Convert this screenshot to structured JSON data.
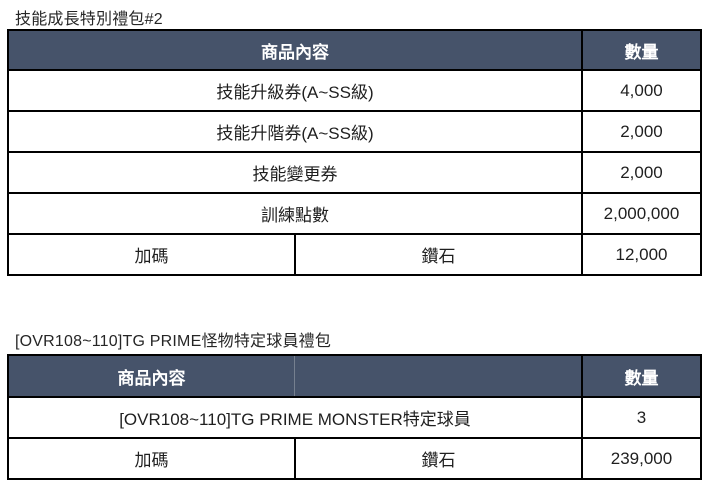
{
  "colors": {
    "header_bg": "#46536A",
    "header_text": "#FFFFFF",
    "body_text": "#1F1F1F",
    "border": "#000000",
    "header_divider": "#76808F",
    "page_bg": "#FFFFFF"
  },
  "tables": [
    {
      "title": "技能成長特別禮包#2",
      "header": {
        "content_label": "商品內容",
        "qty_label": "數量",
        "content_label_span": "full"
      },
      "rows": [
        {
          "cells": [
            {
              "text": "技能升級券(A~SS級)",
              "span": "full"
            }
          ],
          "qty": "4,000"
        },
        {
          "cells": [
            {
              "text": "技能升階券(A~SS級)",
              "span": "full"
            }
          ],
          "qty": "2,000"
        },
        {
          "cells": [
            {
              "text": "技能變更券",
              "span": "full"
            }
          ],
          "qty": "2,000"
        },
        {
          "cells": [
            {
              "text": "訓練點數",
              "span": "full"
            }
          ],
          "qty": "2,000,000"
        },
        {
          "cells": [
            {
              "text": "加碼",
              "span": "left"
            },
            {
              "text": "鑽石",
              "span": "right"
            }
          ],
          "qty": "12,000"
        }
      ]
    },
    {
      "title": "[OVR108~110]TG PRIME怪物特定球員禮包",
      "header": {
        "content_label": "商品內容",
        "qty_label": "數量",
        "content_label_span": "left"
      },
      "rows": [
        {
          "cells": [
            {
              "text": "[OVR108~110]TG PRIME MONSTER特定球員",
              "span": "full"
            }
          ],
          "qty": "3"
        },
        {
          "cells": [
            {
              "text": "加碼",
              "span": "left"
            },
            {
              "text": "鑽石",
              "span": "right"
            }
          ],
          "qty": "239,000"
        }
      ]
    }
  ]
}
